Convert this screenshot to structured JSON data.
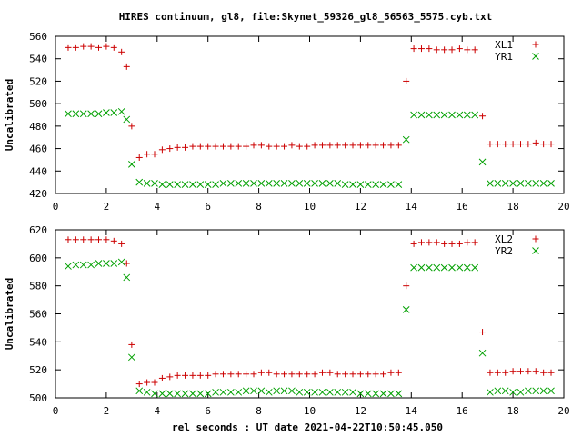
{
  "title": "HIRES continuum, gl8, file:Skynet_59326_gl8_56563_5575.cyb.txt",
  "xlabel": "rel seconds : UT date 2021-04-22T10:50:45.050",
  "colors": {
    "red": "#cc0000",
    "green": "#00a000"
  },
  "chart_data": [
    {
      "type": "scatter",
      "ylabel": "Uncalibrated",
      "xlim": [
        0,
        20
      ],
      "ylim": [
        420,
        560
      ],
      "xticks": [
        0,
        2,
        4,
        6,
        8,
        10,
        12,
        14,
        16,
        18,
        20
      ],
      "yticks": [
        420,
        440,
        460,
        480,
        500,
        520,
        540,
        560
      ],
      "legend_position": "top-right",
      "series": [
        {
          "name": "XL1",
          "marker": "plus",
          "color": "#cc0000",
          "x": [
            0.5,
            0.8,
            1.1,
            1.4,
            1.7,
            2.0,
            2.3,
            2.6,
            2.8,
            3.0,
            3.3,
            3.6,
            3.9,
            4.2,
            4.5,
            4.8,
            5.1,
            5.4,
            5.7,
            6.0,
            6.3,
            6.6,
            6.9,
            7.2,
            7.5,
            7.8,
            8.1,
            8.4,
            8.7,
            9.0,
            9.3,
            9.6,
            9.9,
            10.2,
            10.5,
            10.8,
            11.1,
            11.4,
            11.7,
            12.0,
            12.3,
            12.6,
            12.9,
            13.2,
            13.5,
            13.8,
            14.1,
            14.4,
            14.7,
            15.0,
            15.3,
            15.6,
            15.9,
            16.2,
            16.5,
            16.8,
            17.1,
            17.4,
            17.7,
            18.0,
            18.3,
            18.6,
            18.9,
            19.2,
            19.5
          ],
          "y": [
            550,
            550,
            551,
            551,
            550,
            551,
            550,
            546,
            533,
            480,
            452,
            455,
            455,
            459,
            460,
            461,
            461,
            462,
            462,
            462,
            462,
            462,
            462,
            462,
            462,
            463,
            463,
            462,
            462,
            462,
            463,
            462,
            462,
            463,
            463,
            463,
            463,
            463,
            463,
            463,
            463,
            463,
            463,
            463,
            463,
            520,
            549,
            549,
            549,
            548,
            548,
            548,
            549,
            548,
            548,
            489,
            464,
            464,
            464,
            464,
            464,
            464,
            465,
            464,
            464
          ]
        },
        {
          "name": "YR1",
          "marker": "cross",
          "color": "#00a000",
          "x": [
            0.5,
            0.8,
            1.1,
            1.4,
            1.7,
            2.0,
            2.3,
            2.6,
            2.8,
            3.0,
            3.3,
            3.6,
            3.9,
            4.2,
            4.5,
            4.8,
            5.1,
            5.4,
            5.7,
            6.0,
            6.3,
            6.6,
            6.9,
            7.2,
            7.5,
            7.8,
            8.1,
            8.4,
            8.7,
            9.0,
            9.3,
            9.6,
            9.9,
            10.2,
            10.5,
            10.8,
            11.1,
            11.4,
            11.7,
            12.0,
            12.3,
            12.6,
            12.9,
            13.2,
            13.5,
            13.8,
            14.1,
            14.4,
            14.7,
            15.0,
            15.3,
            15.6,
            15.9,
            16.2,
            16.5,
            16.8,
            17.1,
            17.4,
            17.7,
            18.0,
            18.3,
            18.6,
            18.9,
            19.2,
            19.5
          ],
          "y": [
            491,
            491,
            491,
            491,
            491,
            492,
            492,
            493,
            486,
            446,
            430,
            429,
            429,
            428,
            428,
            428,
            428,
            428,
            428,
            428,
            428,
            429,
            429,
            429,
            429,
            429,
            429,
            429,
            429,
            429,
            429,
            429,
            429,
            429,
            429,
            429,
            429,
            428,
            428,
            428,
            428,
            428,
            428,
            428,
            428,
            468,
            490,
            490,
            490,
            490,
            490,
            490,
            490,
            490,
            490,
            448,
            429,
            429,
            429,
            429,
            429,
            429,
            429,
            429,
            429
          ]
        }
      ]
    },
    {
      "type": "scatter",
      "ylabel": "Uncalibrated",
      "xlim": [
        0,
        20
      ],
      "ylim": [
        500,
        620
      ],
      "xticks": [
        0,
        2,
        4,
        6,
        8,
        10,
        12,
        14,
        16,
        18,
        20
      ],
      "yticks": [
        500,
        520,
        540,
        560,
        580,
        600,
        620
      ],
      "legend_position": "top-right",
      "series": [
        {
          "name": "XL2",
          "marker": "plus",
          "color": "#cc0000",
          "x": [
            0.5,
            0.8,
            1.1,
            1.4,
            1.7,
            2.0,
            2.3,
            2.6,
            2.8,
            3.0,
            3.3,
            3.6,
            3.9,
            4.2,
            4.5,
            4.8,
            5.1,
            5.4,
            5.7,
            6.0,
            6.3,
            6.6,
            6.9,
            7.2,
            7.5,
            7.8,
            8.1,
            8.4,
            8.7,
            9.0,
            9.3,
            9.6,
            9.9,
            10.2,
            10.5,
            10.8,
            11.1,
            11.4,
            11.7,
            12.0,
            12.3,
            12.6,
            12.9,
            13.2,
            13.5,
            13.8,
            14.1,
            14.4,
            14.7,
            15.0,
            15.3,
            15.6,
            15.9,
            16.2,
            16.5,
            16.8,
            17.1,
            17.4,
            17.7,
            18.0,
            18.3,
            18.6,
            18.9,
            19.2,
            19.5
          ],
          "y": [
            613,
            613,
            613,
            613,
            613,
            613,
            612,
            610,
            596,
            538,
            510,
            511,
            511,
            514,
            515,
            516,
            516,
            516,
            516,
            516,
            517,
            517,
            517,
            517,
            517,
            517,
            518,
            518,
            517,
            517,
            517,
            517,
            517,
            517,
            518,
            518,
            517,
            517,
            517,
            517,
            517,
            517,
            517,
            518,
            518,
            580,
            610,
            611,
            611,
            611,
            610,
            610,
            610,
            611,
            611,
            547,
            518,
            518,
            518,
            519,
            519,
            519,
            519,
            518,
            518
          ]
        },
        {
          "name": "YR2",
          "marker": "cross",
          "color": "#00a000",
          "x": [
            0.5,
            0.8,
            1.1,
            1.4,
            1.7,
            2.0,
            2.3,
            2.6,
            2.8,
            3.0,
            3.3,
            3.6,
            3.9,
            4.2,
            4.5,
            4.8,
            5.1,
            5.4,
            5.7,
            6.0,
            6.3,
            6.6,
            6.9,
            7.2,
            7.5,
            7.8,
            8.1,
            8.4,
            8.7,
            9.0,
            9.3,
            9.6,
            9.9,
            10.2,
            10.5,
            10.8,
            11.1,
            11.4,
            11.7,
            12.0,
            12.3,
            12.6,
            12.9,
            13.2,
            13.5,
            13.8,
            14.1,
            14.4,
            14.7,
            15.0,
            15.3,
            15.6,
            15.9,
            16.2,
            16.5,
            16.8,
            17.1,
            17.4,
            17.7,
            18.0,
            18.3,
            18.6,
            18.9,
            19.2,
            19.5
          ],
          "y": [
            594,
            595,
            595,
            595,
            596,
            596,
            596,
            597,
            586,
            529,
            505,
            504,
            503,
            503,
            503,
            503,
            503,
            503,
            503,
            503,
            504,
            504,
            504,
            504,
            505,
            505,
            505,
            504,
            505,
            505,
            505,
            504,
            504,
            504,
            504,
            504,
            504,
            504,
            504,
            503,
            503,
            503,
            503,
            503,
            503,
            563,
            593,
            593,
            593,
            593,
            593,
            593,
            593,
            593,
            593,
            532,
            504,
            505,
            505,
            504,
            504,
            505,
            505,
            505,
            505
          ]
        }
      ]
    }
  ]
}
